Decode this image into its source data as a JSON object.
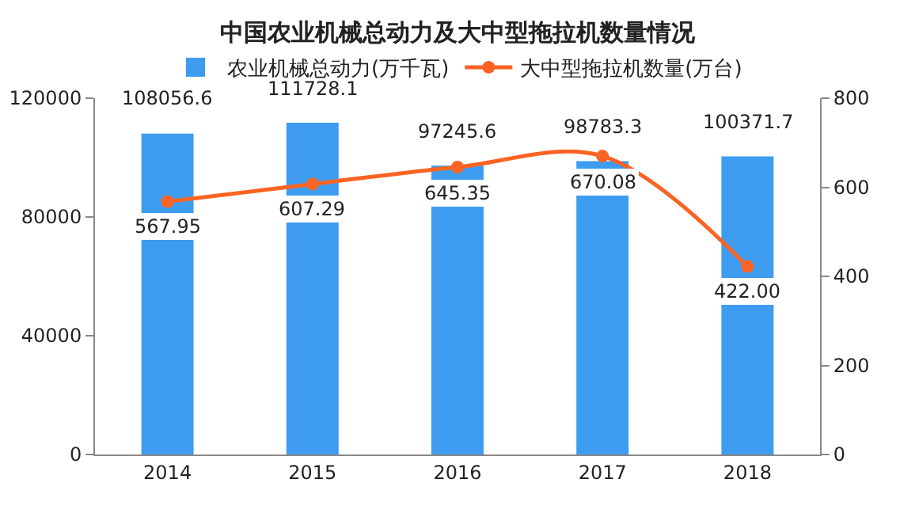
{
  "chart_data": {
    "type": "bar",
    "title": "中国农业机械总动力及大中型拖拉机数量情况",
    "categories": [
      "2014",
      "2015",
      "2016",
      "2017",
      "2018"
    ],
    "series": [
      {
        "name": "农业机械总动力(万千瓦)",
        "color": "#3d9cf0",
        "values": [
          108056.6,
          111728.1,
          97245.6,
          98783.3,
          100371.7
        ],
        "value_labels": [
          "108056.6",
          "111728.1",
          "97245.6",
          "98783.3",
          "100371.7"
        ]
      },
      {
        "name": "大中型拖拉机数量(万台)",
        "type": "line",
        "axis": "y2",
        "color": "#fb6323",
        "values": [
          567.95,
          607.29,
          645.35,
          670.08,
          422.0
        ],
        "value_labels": [
          "567.95",
          "607.29",
          "645.35",
          "670.08",
          "422.00"
        ]
      }
    ],
    "ylim": [
      0,
      120000
    ],
    "yticks": [
      0,
      40000,
      80000,
      120000
    ],
    "y2lim": [
      0,
      800
    ],
    "y2ticks": [
      0,
      200,
      400,
      600,
      800
    ],
    "grid": false,
    "legend": "top",
    "marker": "circle"
  }
}
